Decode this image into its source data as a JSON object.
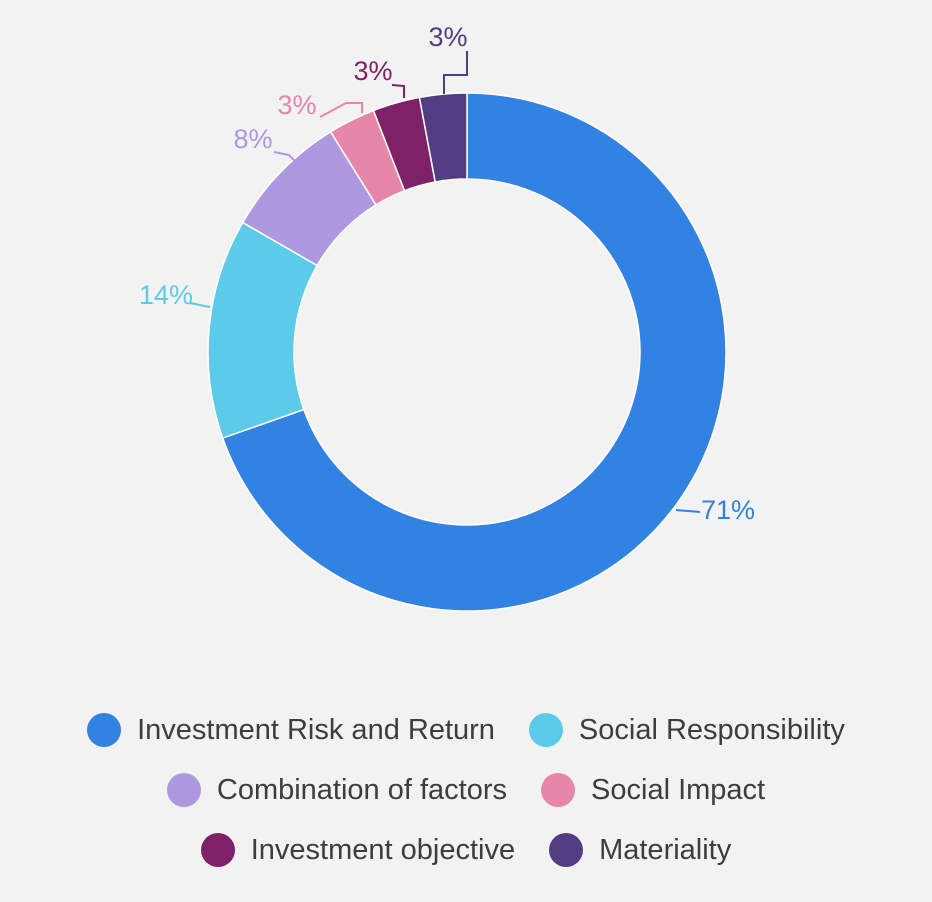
{
  "chart_data": {
    "type": "pie",
    "variant": "donut",
    "slices": [
      {
        "label": "Investment Risk and Return",
        "value": 71,
        "display": "71%",
        "color": "#3182e3"
      },
      {
        "label": "Social Responsibility",
        "value": 14,
        "display": "14%",
        "color": "#5bcbe9"
      },
      {
        "label": "Combination of factors",
        "value": 8,
        "display": "8%",
        "color": "#ae98df"
      },
      {
        "label": "Social Impact",
        "value": 3,
        "display": "3%",
        "color": "#e686a9"
      },
      {
        "label": "Investment objective",
        "value": 3,
        "display": "3%",
        "color": "#7f2167"
      },
      {
        "label": "Materiality",
        "value": 3,
        "display": "3%",
        "color": "#533d82"
      }
    ],
    "legend_position": "bottom"
  },
  "legend": {
    "rows": [
      [
        0,
        1
      ],
      [
        2,
        3
      ],
      [
        4,
        5
      ]
    ]
  }
}
